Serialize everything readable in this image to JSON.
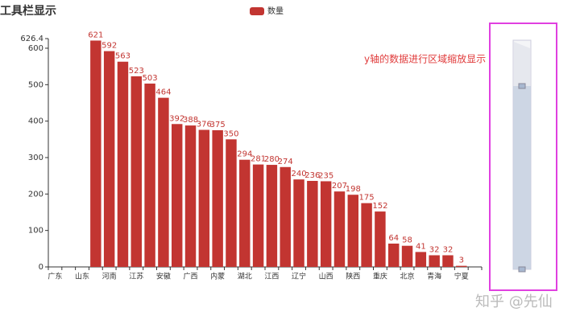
{
  "chart_data": {
    "type": "bar",
    "title": "工具栏显示",
    "legend": "数量",
    "annotation": "y轴的数据进行区域缩放显示",
    "watermark": "知乎 @先仙",
    "color": "#c23531",
    "categories": [
      "广东",
      null,
      "山东",
      null,
      "河南",
      null,
      "江苏",
      null,
      "安徽",
      null,
      "广西",
      null,
      "内蒙",
      null,
      "湖北",
      null,
      "江西",
      null,
      "辽宁",
      null,
      "山西",
      null,
      "陕西",
      null,
      "重庆",
      null,
      "北京",
      null,
      "青海",
      null,
      "宁夏",
      null
    ],
    "values": [
      null,
      null,
      null,
      621,
      592,
      563,
      523,
      503,
      464,
      392,
      388,
      376,
      375,
      350,
      294,
      281,
      280,
      274,
      240,
      236,
      235,
      207,
      198,
      175,
      152,
      64,
      58,
      41,
      32,
      32,
      3,
      null
    ],
    "ylim": [
      0,
      626.4
    ],
    "yticks": [
      0,
      100,
      200,
      300,
      400,
      500,
      600,
      626.4
    ]
  }
}
